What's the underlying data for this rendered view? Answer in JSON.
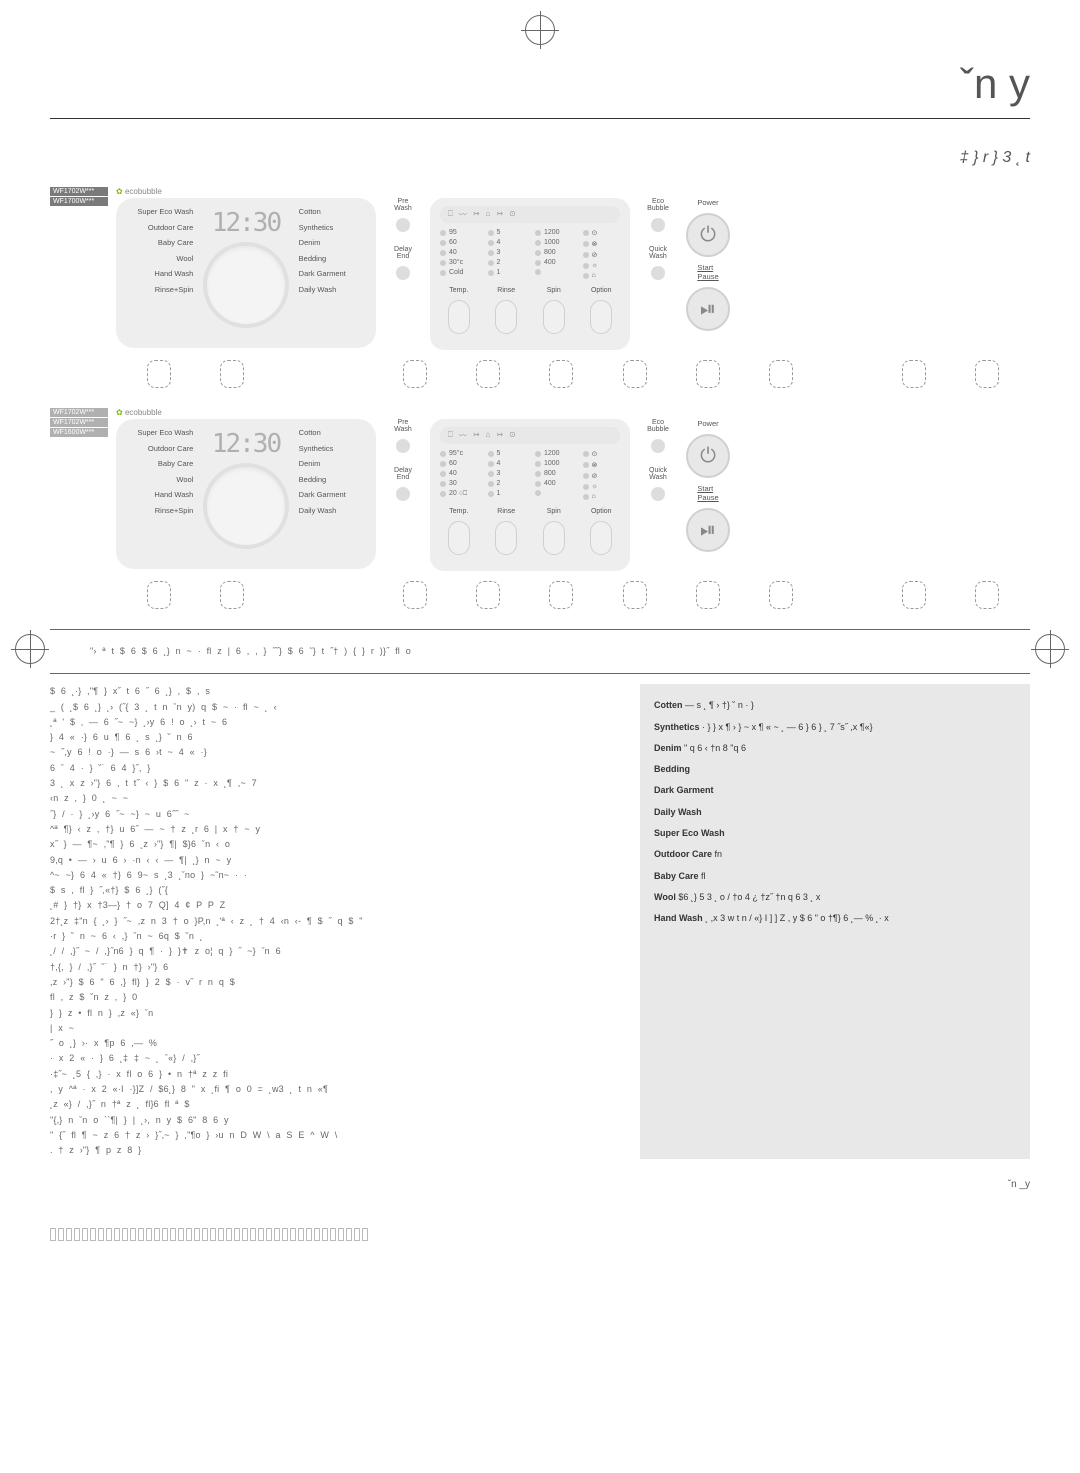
{
  "page": {
    "title_chars": "ˇn          y",
    "section_title": "‡   }     r  }  3  ˛  t",
    "page_number": "ˇn     _y"
  },
  "models": {
    "panel1": [
      "WF1702W***",
      "WF1700W***"
    ],
    "panel2": [
      "WF1702W***",
      "WF1702W***",
      "WF1600W***"
    ]
  },
  "eco_label": "ecobubble",
  "display_time": "12:30",
  "programs": {
    "left": [
      "Super Eco Wash",
      "Outdoor Care",
      "Baby Care",
      "Wool",
      "Hand Wash",
      "Rinse+Spin"
    ],
    "right": [
      "Cotton",
      "Synthetics",
      "Denim",
      "Bedding",
      "Dark Garment",
      "Daily Wash"
    ]
  },
  "prewash": {
    "pre_label": "Pre\nWash",
    "delay_label": "Delay\nEnd"
  },
  "care_icons": [
    "⎕",
    "〰",
    "↣",
    "⌂",
    "↣",
    "⊙"
  ],
  "options": {
    "temp": {
      "panel1": [
        "95",
        "60",
        "40",
        "30°c",
        "Cold"
      ],
      "panel2": [
        "95°c",
        "60",
        "40",
        "30",
        "20 ○⎕"
      ]
    },
    "rinse": [
      "5",
      "4",
      "3",
      "2",
      "1"
    ],
    "spin": [
      "1200",
      "1000",
      "800",
      "400",
      ""
    ],
    "opt_icons": [
      "⊙",
      "⊗",
      "⊘",
      "☼",
      "⌂"
    ],
    "headers": [
      "Temp.",
      "Rinse",
      "Spin",
      "Option"
    ]
  },
  "side_buttons": {
    "eco": "Eco\nBubble",
    "quick": "Quick\nWash"
  },
  "power": {
    "power_label": "Power",
    "start_label": "Start\nPause"
  },
  "content": {
    "intro_line": "\"›    ª  t $ 6   $ 6 ˛}  n        ~  · fl    z  | 6  , ,  } ˝˝}  $ 6 ˜} t ˝†    )     {  } r )}˝ fl o",
    "intro_text": "$ 6 ˛·}  ,\"¶ }   x˝ t 6  ˝  6 ˛}   ,   $  ,  s\n_  ( ˛$ 6 ˛}    ˛›   (˝{  3  ˛  t  n  ˇn      y)   q  $    ~  · fl    ~  ˛ ‹\n˛ª    ' $ ‚  — 6 ˝~ ~}  ˛›y 6  !  o    ˛› t  ~  6\n}    4  « ·}  6   u  ¶  6    ˛ s ˛}    ˘ n  6\n~    ˝,y 6  !  o  ·}  — s 6    ›t  ~  4  « ·}\n6   ˇ 4  · }  ˘˙ 6  4 }˝, }\n3 ˛ x   z     ›\"}  6   , t  t˝    ‹ }   $ 6 \"   z   · x  ˛¶ ,~  7\n‹n   z  ,  }   0  ˛ ~  ~\n˝}    /  · }    ˛›y  6  ˝~  ~}  ~  u  6˝˝  ~\n^ª   ¶}   ‹ z   , †}     u 6˝ —    ~   † z  ˛r       6    |    x   †    ~   y\nx˝ }   — ¶~   ,\"¶ }  6  ˛z   ›\"}  ¶|  $}6   ˇn ‹ o\n9,q  • — › u 6  › ·n   ‹ ‹ —   ¶|  ˛}    n  ~   y\n^~    ~}  6  4  « †}  6  9~ s ˛3  ˛ˇno  }  ~˜n~ · ·\n$   s   , fl  }  ˝,«†}    $ 6 ˛}     (˝{\n˛#    }   †}    x  †3—} † o 7 Q]  4 ¢ P P Z\n2†˛z   ‡\"n   { ˛› }   ˝~ ,z  n  3   † o   }P,n    ˛'ª    ‹ z    ˛ †  4   ‹n   ‹-   ¶    $   ˝    q $ \"\n·r  }   ˘ n ~ 6    ‹  ,}    ˇn   ~  6q $  ˘n  ˛\n˛/   / ,}˝  ~  /  ,}˝n6 }   q  ¶  · }   }✝ z  o¦  q  }    ˝    ~}   ˇn    6\n†,{,  }   / ,}˝   ˘˙ }   n  †}   ›\"}  6\n,z    ›\"}    $ 6 \" 6   ,} fl}     }  2  $ · v˝ r   n  q  $\nfl , z $   ˘n   z  ,  }   0\n}   }   z  • fl   n    }   ,z «}   ˇn\n|   x   ~\n˝  o   ˛}  ›· x   ¶p 6   ,—   %\n· x  2 « · }  6   ˛‡   ‡    ~  ˛ ˆ«}   / ,}˝\n·‡˝~ ˛5    {  ,}   · x  fl o  6   }  • n   †ª  z   z  fi\n,  y  ^ª    · x  2  «·I ·}]Z / $6˛}  8 \"  x  ˛fi ¶ o  0   = ˛w3   ˛  t  n  «¶\n˛z  «}   / ,}˝   n  †ª  z   ˛ fl}6  fl ª  $\n\"{,}  n ˇn    o  ``¶| }   |  ˛›,  n   y  $ 6\"   8 6   y\n\" {˝   fl ¶ ~   z    6    † z   › }˝,~ }    ,\"¶o } ›u n  D W \\ a S  E ^ W \\\n.  † z   ›\"}    ¶ p    z     8  }",
    "programs": [
      {
        "name": "Cotten",
        "desc": "— s  ˛ ¶ › †}  ˘ n  · }"
      },
      {
        "name": "Synthetics",
        "desc": "· }    }    x  ¶ ›        }    ~   x  ¶ «\n  ~ ˛ — 6    }    6   }   ˛\n7 ˝s˝   ,x  ¶«}"
      },
      {
        "name": "Denim",
        "desc": "\" q 6   ‹\n  †n  8  \"q 6"
      },
      {
        "name": "Bedding",
        "desc": ""
      },
      {
        "name": "Dark Garment",
        "desc": ""
      },
      {
        "name": "Daily Wash",
        "desc": ""
      },
      {
        "name": "Super Eco Wash",
        "desc": ""
      },
      {
        "name": "Outdoor Care",
        "desc": "fn"
      },
      {
        "name": "Baby Care",
        "desc": "fl"
      },
      {
        "name": "Wool",
        "desc": "$6 ˛}   5   3  ˛ o    /\n†o  4   ¿    †z˝\n  †n  q 6  3 ˛ x"
      },
      {
        "name": "Hand Wash",
        "desc": "  ˛ ,x  3  w  t  n   /  «}    I ] ] Z   ,  y   $ 6 \"   o\n  †¶}  6   ˛—   %    ˛· x"
      }
    ]
  },
  "colors": {
    "panel_bg": "#eeeeee",
    "text_muted": "#666666",
    "badge_dark": "#7a7a7a",
    "badge_light": "#b0b0b0",
    "highlight_bg": "#e8e8e8"
  }
}
